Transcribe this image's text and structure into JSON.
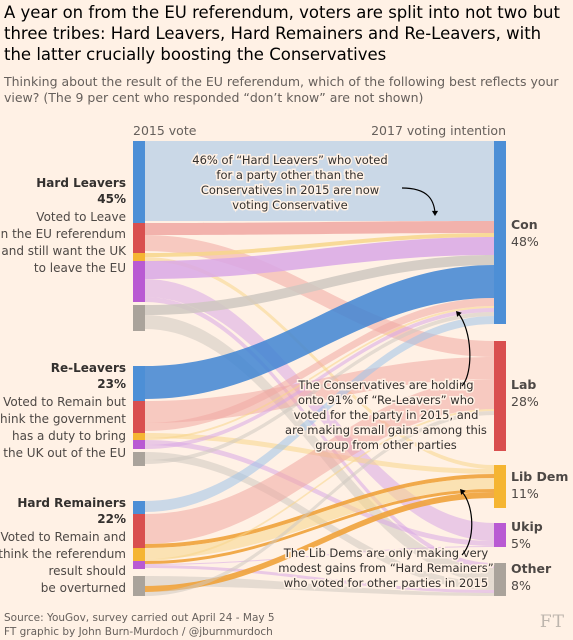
{
  "title": "A year on from the EU referendum, voters are split into not two but three tribes: Hard Leavers, Hard Remainers and Re-Leavers, with the latter crucially boosting the Conservatives",
  "subtitle": "Thinking about the result of the EU referendum, which of the following best reflects your view? (The 9 per cent who responded “don’t know” are not shown)",
  "source": "Source: YouGov, survey carried out April 24 - May 5",
  "credit": "FT graphic by John Burn-Murdoch / @jburnmurdoch",
  "logo": "FT",
  "chart_data": {
    "type": "sankey",
    "left_axis_label": "2015 vote",
    "right_axis_label": "2017 voting intention",
    "groups": [
      {
        "name": "Hard Leavers",
        "value": "45%",
        "desc": [
          "Voted to Leave",
          "in the EU referendum",
          "and still want the UK",
          "to leave the EU"
        ]
      },
      {
        "name": "Re-Leavers",
        "value": "23%",
        "desc": [
          "Voted to Remain but",
          "think the government",
          "has a duty to bring",
          "the UK out of the EU"
        ]
      },
      {
        "name": "Hard Remainers",
        "value": "22%",
        "desc": [
          "Voted to Remain and",
          "think the referendum",
          "result should",
          "be overturned"
        ]
      }
    ],
    "destinations": [
      {
        "name": "Con",
        "value": "48%",
        "color": "#4d8fd6"
      },
      {
        "name": "Lab",
        "value": "28%",
        "color": "#d94f4f"
      },
      {
        "name": "Lib Dem",
        "value": "11%",
        "color": "#f5b532"
      },
      {
        "name": "Ukip",
        "value": "5%",
        "color": "#b95ad3"
      },
      {
        "name": "Other",
        "value": "8%",
        "color": "#aaa39b"
      }
    ],
    "annotations": [
      "46% of “Hard Leavers” who voted for a party other than the Conservatives in 2015 are now voting Conservative",
      "The Conservatives are holding onto 91% of “Re-Leavers” who voted for the party in 2015, and are making small gains among this group from other parties",
      "The Lib Dems are only making very modest gains from “Hard Remainers” who voted for other parties in 2015"
    ]
  }
}
